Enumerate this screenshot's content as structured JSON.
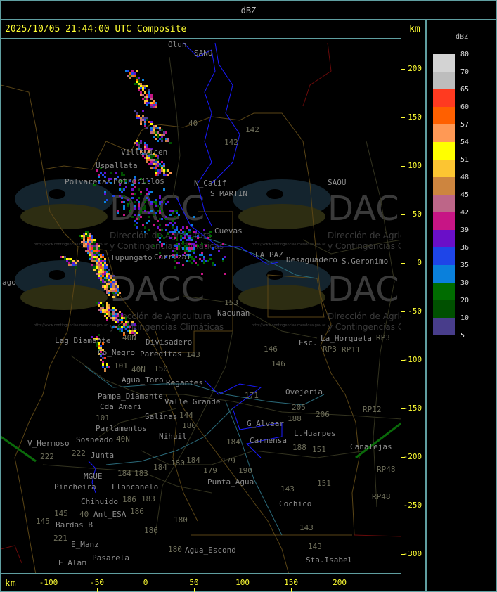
{
  "header": {
    "title": "dBZ"
  },
  "map": {
    "title": "2025/10/05 21:44:00 UTC Composite",
    "unit_label": "km",
    "x_ticks": [
      "-100",
      "-50",
      "0",
      "50",
      "100",
      "150",
      "200"
    ],
    "y_ticks": [
      "200",
      "150",
      "100",
      "50",
      "0",
      "-50",
      "-100",
      "-150",
      "-200",
      "-250",
      "-300"
    ],
    "places": [
      "Olun",
      "SANU",
      "Uspallata",
      "Polvaredas",
      "Villavicen",
      "N_Calif",
      "S_MARTIN",
      "Carrizal",
      "Cuevas",
      "Desaguadero",
      "LA PAZ",
      "S.Geronimo",
      "SAOU",
      "Nacunan",
      "La_Horqueta",
      "Esc.",
      "Divisadero",
      "Lag_Diamante",
      "Co_Negro",
      "Agua_Toro",
      "Pampa_Diamante",
      "Parlamentos",
      "Sosneado",
      "V_Hermoso",
      "Salinas",
      "Cda_Amari",
      "Nihuil",
      "Valle_Grande",
      "Regantes",
      "Junta",
      "MGUE",
      "Pincheira",
      "Llancanelo",
      "Chihuido",
      "Ant_ESA",
      "Bardas_B",
      "E_Manz",
      "E_Alam",
      "Pasarela",
      "Punta_Agua",
      "Agua_Escond",
      "Ovejeria",
      "L.Huarpes",
      "Carmensa",
      "G_Alvear",
      "Canalejas",
      "Cochico",
      "Sta.Isabel",
      "ago",
      "Potrerillos",
      "Tupungato",
      "Pareditas"
    ],
    "routes": [
      "40",
      "142",
      "142",
      "153",
      "146",
      "143",
      "150",
      "101",
      "40N",
      "40N",
      "101",
      "40N",
      "144",
      "180",
      "184",
      "184",
      "180",
      "179",
      "184",
      "190",
      "179",
      "205",
      "206",
      "188",
      "151",
      "151",
      "143",
      "143",
      "143",
      "222",
      "222",
      "184",
      "183",
      "186",
      "186",
      "183",
      "180",
      "186",
      "180",
      "145",
      "145",
      "40",
      "221",
      "146",
      "RP3",
      "RP3",
      "RP11",
      "RP12",
      "RP48",
      "RP48",
      "171",
      "188"
    ],
    "watermark": {
      "logo_text": "DACC",
      "line1": "Dirección de Agricultura",
      "line2": "y Contingencias Climáticas",
      "url": "http://www.contingencias.mendoza.gov.ar"
    }
  },
  "legend": {
    "title": "dBZ",
    "levels": [
      {
        "label": "80",
        "color": "#d3d3d3"
      },
      {
        "label": "70",
        "color": "#bdbdbd"
      },
      {
        "label": "65",
        "color": "#ff3a20"
      },
      {
        "label": "60",
        "color": "#ff6000"
      },
      {
        "label": "57",
        "color": "#ff9955"
      },
      {
        "label": "54",
        "color": "#ffff00"
      },
      {
        "label": "51",
        "color": "#fcc532"
      },
      {
        "label": "48",
        "color": "#cd853f"
      },
      {
        "label": "45",
        "color": "#bd6688"
      },
      {
        "label": "42",
        "color": "#c71585"
      },
      {
        "label": "39",
        "color": "#6a0fc8"
      },
      {
        "label": "36",
        "color": "#1e45e8"
      },
      {
        "label": "35",
        "color": "#0a80dc"
      },
      {
        "label": "30",
        "color": "#006c00"
      },
      {
        "label": "20",
        "color": "#005000"
      },
      {
        "label": "10",
        "color": "#483d8b"
      },
      {
        "label": "5",
        "color": ""
      }
    ]
  }
}
